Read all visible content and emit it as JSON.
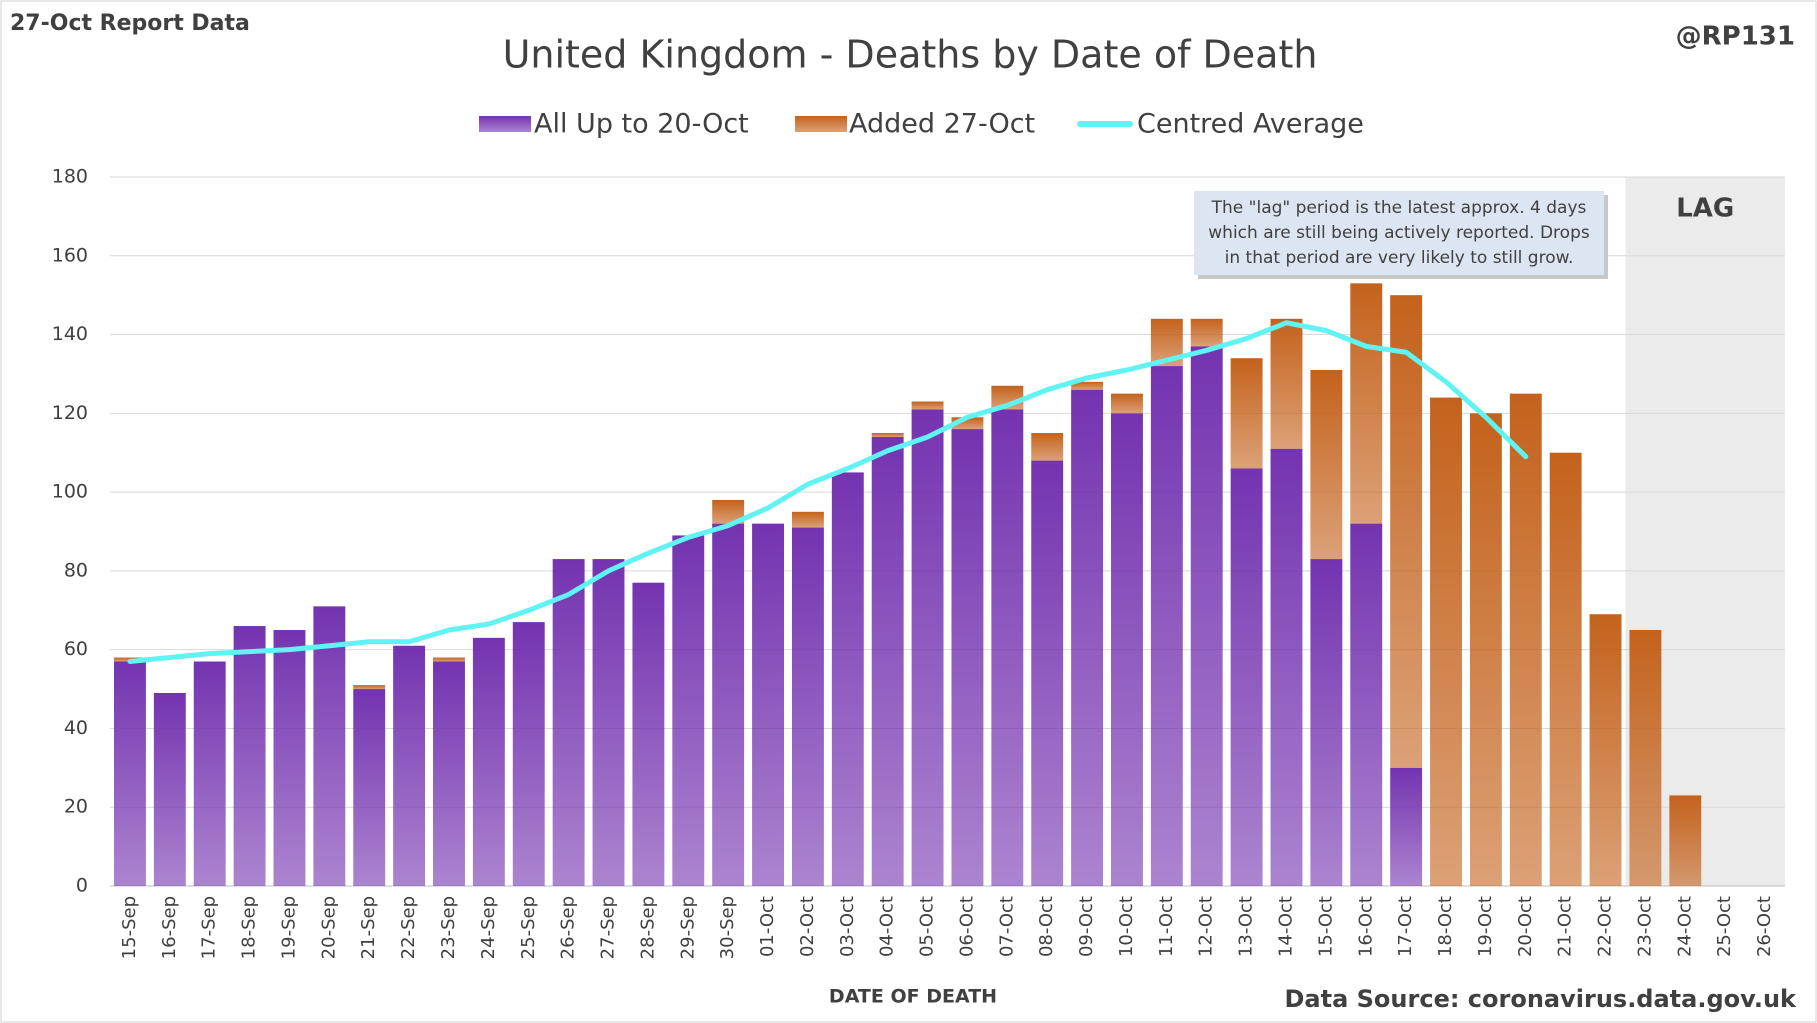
{
  "chart_data": {
    "type": "bar",
    "stacked": true,
    "report_label": "27-Oct Report Data",
    "title": "United Kingdom - Deaths by Date of Death",
    "credit": "@RP131",
    "xlabel": "DATE OF DEATH",
    "source": "Data Source: coronavirus.data.gov.uk",
    "annotation": [
      "The \"lag\" period is the latest approx. 4 days",
      "which are still being actively reported.  Drops",
      "in that period are very likely to still grow."
    ],
    "lag_label": "LAG",
    "categories": [
      "15-Sep",
      "16-Sep",
      "17-Sep",
      "18-Sep",
      "19-Sep",
      "20-Sep",
      "21-Sep",
      "22-Sep",
      "23-Sep",
      "24-Sep",
      "25-Sep",
      "26-Sep",
      "27-Sep",
      "28-Sep",
      "29-Sep",
      "30-Sep",
      "01-Oct",
      "02-Oct",
      "03-Oct",
      "04-Oct",
      "05-Oct",
      "06-Oct",
      "07-Oct",
      "08-Oct",
      "09-Oct",
      "10-Oct",
      "11-Oct",
      "12-Oct",
      "13-Oct",
      "14-Oct",
      "15-Oct",
      "16-Oct",
      "17-Oct",
      "18-Oct",
      "19-Oct",
      "20-Oct",
      "21-Oct",
      "22-Oct",
      "23-Oct",
      "24-Oct",
      "25-Oct",
      "26-Oct"
    ],
    "series": [
      {
        "name": "All Up to 20-Oct",
        "color": "#7433b0",
        "values": [
          57,
          49,
          57,
          66,
          65,
          71,
          50,
          61,
          57,
          63,
          67,
          83,
          83,
          77,
          89,
          92,
          92,
          91,
          105,
          114,
          121,
          116,
          121,
          108,
          126,
          120,
          132,
          137,
          106,
          111,
          83,
          92,
          30,
          0,
          0,
          0,
          0,
          0,
          0,
          0,
          0,
          0
        ]
      },
      {
        "name": "Added 27-Oct",
        "color": "#c4621c",
        "values": [
          1,
          0,
          0,
          0,
          0,
          0,
          1,
          0,
          1,
          0,
          0,
          0,
          0,
          0,
          0,
          6,
          0,
          4,
          0,
          1,
          2,
          3,
          6,
          7,
          2,
          5,
          12,
          7,
          28,
          33,
          48,
          61,
          120,
          124,
          120,
          125,
          110,
          69,
          65,
          23,
          0,
          0
        ]
      },
      {
        "name": "Centred Average",
        "type": "line",
        "color": "#5ff3f3",
        "values": [
          57,
          58,
          59,
          59.5,
          60,
          61,
          62,
          62,
          65,
          66.5,
          70,
          74,
          80,
          84.5,
          88.5,
          91.5,
          96,
          102,
          106,
          110.5,
          114,
          119,
          122,
          126,
          129,
          131,
          133.5,
          136,
          139,
          143,
          141,
          137,
          135.5,
          128,
          119,
          109,
          null,
          null,
          null,
          null,
          null,
          null
        ]
      }
    ],
    "ylim": [
      0,
      180
    ],
    "yticks": [
      0,
      20,
      40,
      60,
      80,
      100,
      120,
      140,
      160,
      180
    ],
    "grid": true
  }
}
